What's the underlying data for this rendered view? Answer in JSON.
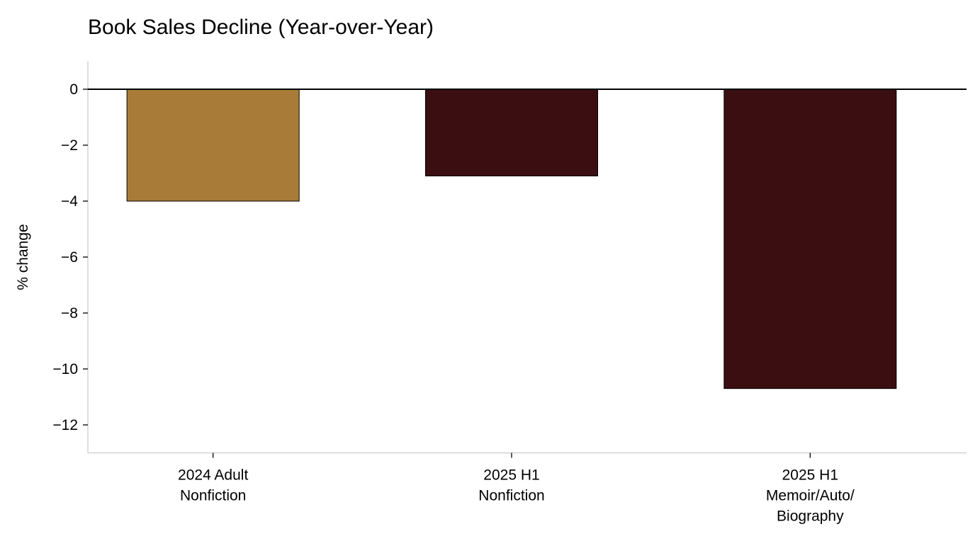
{
  "chart_data": {
    "type": "bar",
    "title": "Book Sales Decline (Year-over-Year)",
    "xlabel": "",
    "ylabel": "% change",
    "ylim": [
      -13,
      1
    ],
    "yticks": [
      0,
      -2,
      -4,
      -6,
      -8,
      -10,
      -12
    ],
    "ytick_labels": [
      "0",
      "−2",
      "−4",
      "−6",
      "−8",
      "−10",
      "−12"
    ],
    "categories": [
      [
        "2024 Adult",
        "Nonfiction"
      ],
      [
        "2025 H1",
        "Nonfiction"
      ],
      [
        "2025 H1",
        "Memoir/Auto/",
        "Biography"
      ]
    ],
    "values": [
      -4.0,
      -3.1,
      -10.7
    ],
    "colors": [
      "#a87c38",
      "#3b0e12",
      "#3b0e12"
    ],
    "bar_edge_color": "#000000",
    "zero_line_color": "#000000",
    "axis_color": "#cccccc",
    "grid": false,
    "legend": "none"
  }
}
